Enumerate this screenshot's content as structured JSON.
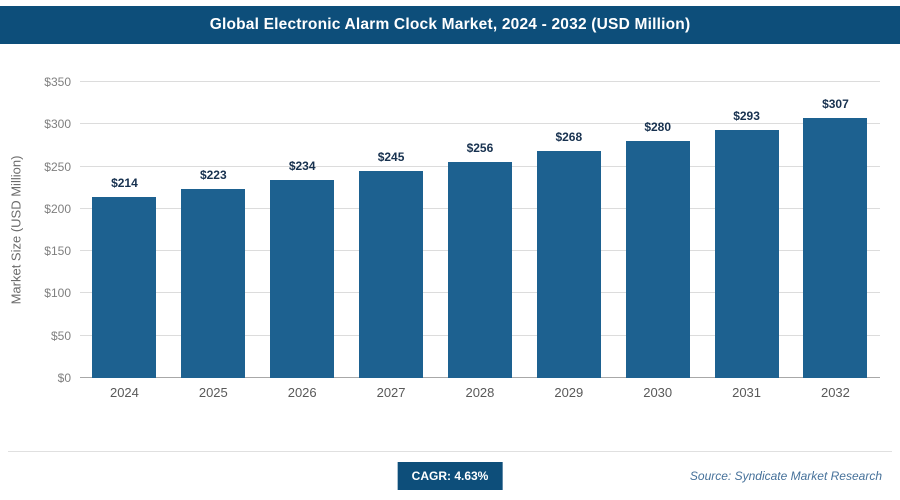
{
  "banner": {
    "title": "Global Electronic Alarm Clock Market, 2024 - 2032 (USD Million)",
    "bg_color": "#0d4e7a"
  },
  "chart_data": {
    "type": "bar",
    "title": "Global Electronic Alarm Clock Market, 2024 - 2032 (USD Million)",
    "categories": [
      "2024",
      "2025",
      "2026",
      "2027",
      "2028",
      "2029",
      "2030",
      "2031",
      "2032"
    ],
    "values": [
      214,
      223,
      234,
      245,
      256,
      268,
      280,
      293,
      307
    ],
    "value_labels": [
      "$214",
      "$223",
      "$234",
      "$245",
      "$256",
      "$268",
      "$280",
      "$293",
      "$307"
    ],
    "xlabel": "",
    "ylabel": "Market Size (USD Million)",
    "ylim": [
      0,
      350
    ],
    "yticks": [
      0,
      50,
      100,
      150,
      200,
      250,
      300,
      350
    ],
    "ytick_labels": [
      "$0",
      "$50",
      "$100",
      "$150",
      "$200",
      "$250",
      "$300",
      "$350"
    ],
    "grid": true,
    "legend_position": "none",
    "bar_color": "#1d6190",
    "value_label_color": "#17314f"
  },
  "footer": {
    "cagr_label": "CAGR: 4.63%",
    "source": "Source: Syndicate Market Research"
  }
}
